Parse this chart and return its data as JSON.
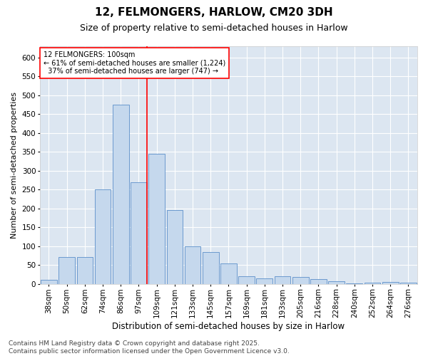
{
  "title": "12, FELMONGERS, HARLOW, CM20 3DH",
  "subtitle": "Size of property relative to semi-detached houses in Harlow",
  "xlabel": "Distribution of semi-detached houses by size in Harlow",
  "ylabel": "Number of semi-detached properties",
  "categories": [
    "38sqm",
    "50sqm",
    "62sqm",
    "74sqm",
    "86sqm",
    "97sqm",
    "109sqm",
    "121sqm",
    "133sqm",
    "145sqm",
    "157sqm",
    "169sqm",
    "181sqm",
    "193sqm",
    "205sqm",
    "216sqm",
    "228sqm",
    "240sqm",
    "252sqm",
    "264sqm",
    "276sqm"
  ],
  "values": [
    10,
    72,
    72,
    250,
    475,
    270,
    345,
    195,
    100,
    85,
    55,
    20,
    15,
    20,
    18,
    13,
    7,
    2,
    3,
    5,
    3
  ],
  "bar_color": "#c5d8ed",
  "bar_edge_color": "#5b8fc9",
  "bg_color": "#dce6f1",
  "grid_color": "#ffffff",
  "vline_index": 5,
  "vline_color": "red",
  "annotation_text": "12 FELMONGERS: 100sqm\n← 61% of semi-detached houses are smaller (1,224)\n  37% of semi-detached houses are larger (747) →",
  "annotation_box_color": "red",
  "annotation_fill": "white",
  "footer": "Contains HM Land Registry data © Crown copyright and database right 2025.\nContains public sector information licensed under the Open Government Licence v3.0.",
  "ylim": [
    0,
    630
  ],
  "yticks": [
    0,
    50,
    100,
    150,
    200,
    250,
    300,
    350,
    400,
    450,
    500,
    550,
    600
  ],
  "title_fontsize": 11,
  "subtitle_fontsize": 9,
  "xlabel_fontsize": 8.5,
  "ylabel_fontsize": 8,
  "tick_fontsize": 7.5,
  "footer_fontsize": 6.5,
  "annotation_fontsize": 7
}
